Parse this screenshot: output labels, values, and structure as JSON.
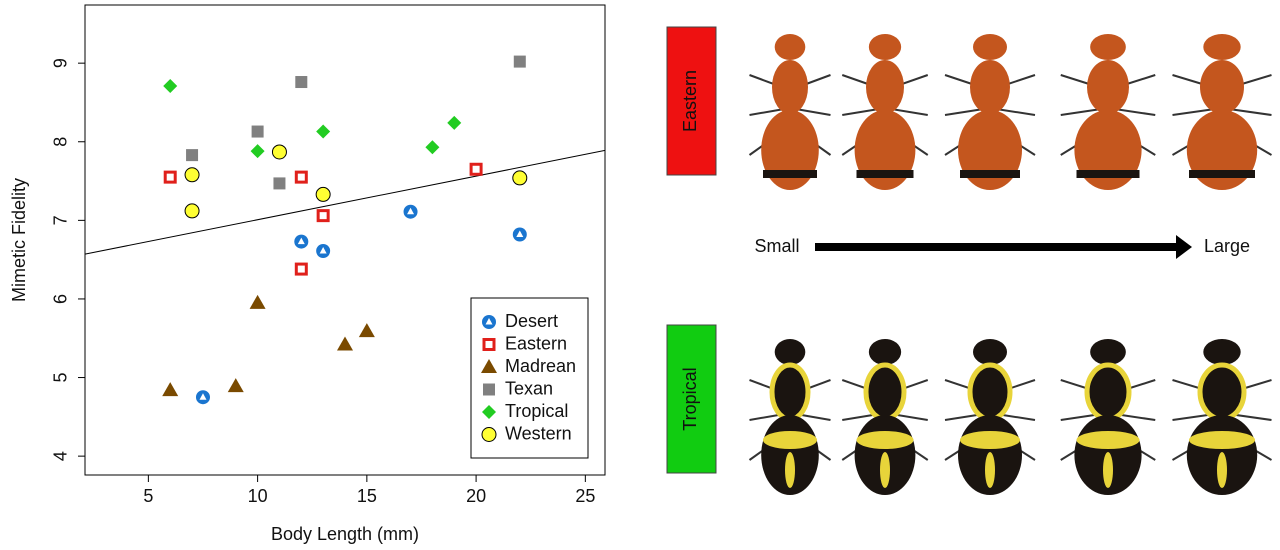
{
  "chart_data": {
    "type": "scatter",
    "x_label": "Body Length (mm)",
    "y_label": "Mimetic Fidelity",
    "xlim": [
      2.1,
      25.9
    ],
    "ylim": [
      3.76,
      9.74
    ],
    "xticks": [
      5,
      10,
      15,
      20,
      25
    ],
    "yticks": [
      4,
      5,
      6,
      7,
      8,
      9
    ],
    "series": [
      {
        "name": "Desert",
        "color": "#1a75cf",
        "marker": "circle-triangle",
        "x": [
          7.5,
          12,
          13,
          17,
          22
        ],
        "values": [
          4.75,
          6.73,
          6.61,
          7.11,
          6.82
        ]
      },
      {
        "name": "Eastern",
        "color": "#e0201b",
        "marker": "square-open",
        "x": [
          6,
          12,
          12,
          13,
          20
        ],
        "values": [
          7.55,
          7.55,
          6.38,
          7.06,
          7.65
        ]
      },
      {
        "name": "Madrean",
        "color": "#7a4a00",
        "marker": "triangle",
        "x": [
          6,
          9,
          10,
          14,
          15
        ],
        "values": [
          4.84,
          4.89,
          5.95,
          5.42,
          5.59
        ]
      },
      {
        "name": "Texan",
        "color": "#808080",
        "marker": "square",
        "x": [
          7,
          10,
          11,
          12,
          22
        ],
        "values": [
          7.83,
          8.13,
          7.47,
          8.76,
          9.02
        ]
      },
      {
        "name": "Tropical",
        "color": "#22cc22",
        "marker": "diamond",
        "x": [
          6,
          10,
          13,
          18,
          19
        ],
        "values": [
          8.71,
          7.88,
          8.13,
          7.93,
          8.24
        ]
      },
      {
        "name": "Western",
        "color": "#ffff33",
        "marker": "circle",
        "x": [
          7,
          7,
          11,
          13,
          22
        ],
        "values": [
          7.58,
          7.12,
          7.87,
          7.33,
          7.54
        ]
      }
    ],
    "trend_line": {
      "x": [
        2.1,
        25.9
      ],
      "values": [
        6.57,
        7.89
      ]
    }
  },
  "specimen_panel": {
    "rows": [
      {
        "label": "Eastern",
        "color": "#ee1111"
      },
      {
        "label": "Tropical",
        "color": "#11cc11"
      }
    ],
    "arrow": {
      "start": "Small",
      "end": "Large"
    }
  }
}
